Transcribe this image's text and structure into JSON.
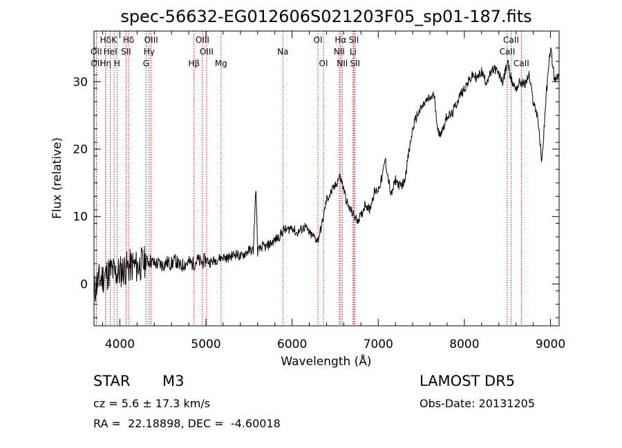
{
  "chart_data": {
    "type": "line",
    "title": "spec-56632-EG012606S021203F05_sp01-187.fits",
    "xlabel": "Wavelength (Å)",
    "ylabel": "Flux (relative)",
    "xlim": [
      3700,
      9100
    ],
    "ylim": [
      -6.2,
      37.5
    ],
    "x_ticks": [
      4000,
      5000,
      6000,
      7000,
      8000,
      9000
    ],
    "y_ticks": [
      0,
      10,
      20,
      30
    ],
    "grid": false,
    "series": [
      {
        "x": [
          3700,
          3750,
          3800,
          3850,
          3900,
          3950,
          4000,
          4050,
          4100,
          4150,
          4200,
          4250,
          4300,
          4350,
          4400,
          4450,
          4500,
          4550,
          4600,
          4650,
          4700,
          4750,
          4800,
          4850,
          4900,
          4950,
          5000,
          5050,
          5100,
          5150,
          5200,
          5250,
          5300,
          5350,
          5400,
          5450,
          5500,
          5550,
          5580,
          5600,
          5650,
          5700,
          5750,
          5800,
          5850,
          5900,
          5950,
          6000,
          6050,
          6100,
          6150,
          6200,
          6250,
          6300,
          6350,
          6400,
          6450,
          6500,
          6550,
          6580,
          6600,
          6650,
          6700,
          6750,
          6800,
          6850,
          6900,
          6950,
          7000,
          7050,
          7080,
          7100,
          7150,
          7200,
          7250,
          7300,
          7350,
          7400,
          7450,
          7500,
          7550,
          7600,
          7650,
          7700,
          7750,
          7800,
          7850,
          7900,
          7950,
          8000,
          8050,
          8100,
          8150,
          8200,
          8250,
          8300,
          8350,
          8400,
          8450,
          8500,
          8550,
          8600,
          8650,
          8700,
          8750,
          8800,
          8850,
          8900,
          8950,
          9000,
          9050,
          9100
        ],
        "y": [
          -1.0,
          0.5,
          1.0,
          1.5,
          2.0,
          1.5,
          1.8,
          2.2,
          2.5,
          2.8,
          2.5,
          3.0,
          3.2,
          3.5,
          3.0,
          3.0,
          2.8,
          3.2,
          3.0,
          3.5,
          2.5,
          3.0,
          3.2,
          3.0,
          3.5,
          3.2,
          3.6,
          3.2,
          3.5,
          3.8,
          4.0,
          3.8,
          4.2,
          4.5,
          4.0,
          4.5,
          5.0,
          5.0,
          14.5,
          4.8,
          5.5,
          5.5,
          6.0,
          6.5,
          7.0,
          8.0,
          8.0,
          8.5,
          7.5,
          8.0,
          8.5,
          7.5,
          7.0,
          6.5,
          9.0,
          12.5,
          13.5,
          14.5,
          16.0,
          15.0,
          14.0,
          11.5,
          10.5,
          9.5,
          10.0,
          12.0,
          11.0,
          13.5,
          14.0,
          16.0,
          18.5,
          17.0,
          13.0,
          15.5,
          14.5,
          15.0,
          19.0,
          23.0,
          25.0,
          26.0,
          27.0,
          27.5,
          28.0,
          22.0,
          23.0,
          25.0,
          25.0,
          26.5,
          28.0,
          29.0,
          30.0,
          31.0,
          30.5,
          31.5,
          30.0,
          31.0,
          32.0,
          31.0,
          30.0,
          33.0,
          30.0,
          29.0,
          30.0,
          29.5,
          31.0,
          27.0,
          25.0,
          18.0,
          28.0,
          35.0,
          30.0,
          31.0
        ]
      }
    ],
    "lines": [
      {
        "label": "Hδ",
        "row": 1,
        "wl": [
          3835
        ]
      },
      {
        "label": "K",
        "row": 1,
        "wl": [
          3934
        ]
      },
      {
        "label": "Hδ",
        "row": 1,
        "wl": [
          4102
        ]
      },
      {
        "label": "OIII",
        "row": 1,
        "wl": [
          4363
        ]
      },
      {
        "label": "OIII",
        "row": 1,
        "wl": [
          4959
        ]
      },
      {
        "label": "OI",
        "row": 1,
        "wl": [
          6300
        ]
      },
      {
        "label": "Hα",
        "row": 1,
        "wl": [
          6563
        ]
      },
      {
        "label": "SII",
        "row": 1,
        "wl": [
          6717
        ]
      },
      {
        "label": "CaII",
        "row": 1,
        "wl": [
          8542
        ]
      },
      {
        "label": "OII",
        "row": 2,
        "wl": [
          3727
        ]
      },
      {
        "label": "HeI",
        "row": 2,
        "wl": [
          3889
        ]
      },
      {
        "label": "SII",
        "row": 2,
        "wl": [
          4072
        ]
      },
      {
        "label": "Hγ",
        "row": 2,
        "wl": [
          4340
        ]
      },
      {
        "label": "OIII",
        "row": 2,
        "wl": [
          5007
        ]
      },
      {
        "label": "Na",
        "row": 2,
        "wl": [
          5893
        ]
      },
      {
        "label": "NII",
        "row": 2,
        "wl": [
          6548
        ]
      },
      {
        "label": "Li",
        "row": 2,
        "wl": [
          6708
        ]
      },
      {
        "label": "CaII",
        "row": 2,
        "wl": [
          8498
        ]
      },
      {
        "label": "OII",
        "row": 3,
        "wl": [
          3729
        ]
      },
      {
        "label": "Hη",
        "row": 3,
        "wl": [
          3835
        ]
      },
      {
        "label": "H",
        "row": 3,
        "wl": [
          3968
        ]
      },
      {
        "label": "G",
        "row": 3,
        "wl": [
          4305
        ]
      },
      {
        "label": "Hβ",
        "row": 3,
        "wl": [
          4861
        ]
      },
      {
        "label": "Mg",
        "row": 3,
        "wl": [
          5175
        ]
      },
      {
        "label": "OI",
        "row": 3,
        "wl": [
          6364
        ]
      },
      {
        "label": "NII",
        "row": 3,
        "wl": [
          6583
        ]
      },
      {
        "label": "SII",
        "row": 3,
        "wl": [
          6731
        ]
      },
      {
        "label": "CaII",
        "row": 3,
        "wl": [
          8662
        ]
      }
    ],
    "colors": {
      "spectrum": "#000000",
      "line_markers": "#cc0000"
    }
  },
  "info": {
    "object_class": "STAR",
    "subclass": "M3",
    "survey": "LAMOST DR5",
    "cz": "cz = 5.6 ± 17.3 km/s",
    "obs_date": "Obs-Date: 20131205",
    "coords": "RA =  22.18898, DEC =  -4.60018"
  }
}
